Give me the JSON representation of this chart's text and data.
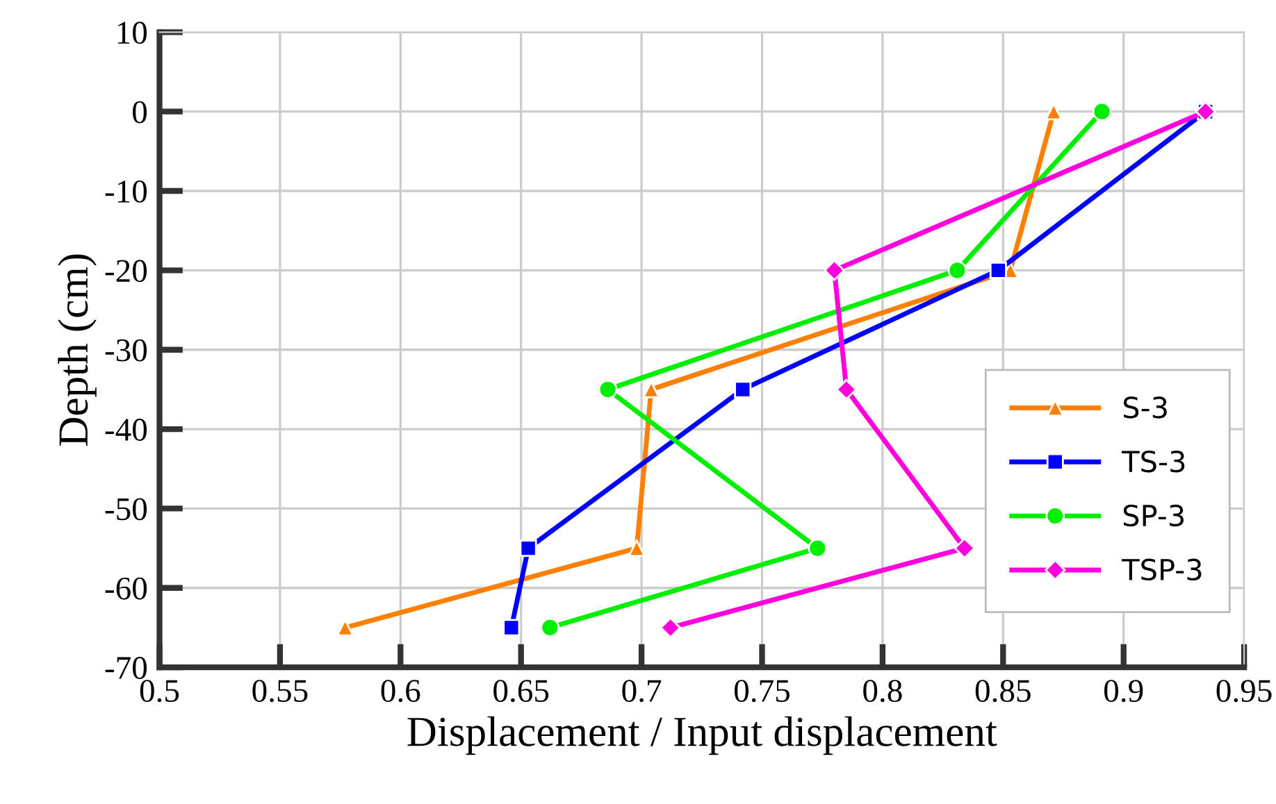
{
  "chart_data": {
    "type": "line",
    "xlabel": "Displacement / Input displacement",
    "ylabel": "Depth (cm)",
    "xlim": [
      0.5,
      0.95
    ],
    "xticks": [
      0.5,
      0.55,
      0.6,
      0.65,
      0.7,
      0.75,
      0.8,
      0.85,
      0.9,
      0.95
    ],
    "ylim": [
      -70,
      10
    ],
    "yticks": [
      -70,
      -60,
      -50,
      -40,
      -30,
      -20,
      -10,
      0,
      10
    ],
    "grid": true,
    "legend": "right",
    "series": [
      {
        "name": "S-3",
        "color": "#ff7f00",
        "marker": "triangle",
        "x": [
          0.871,
          0.853,
          0.704,
          0.698,
          0.577
        ],
        "values": [
          0,
          -20,
          -35,
          -55,
          -65
        ]
      },
      {
        "name": "TS-3",
        "color": "#0000ff",
        "marker": "square",
        "x": [
          0.934,
          0.848,
          0.742,
          0.653,
          0.646
        ],
        "values": [
          0,
          -20,
          -35,
          -55,
          -65
        ]
      },
      {
        "name": "SP-3",
        "color": "#00ee00",
        "marker": "circle",
        "x": [
          0.891,
          0.831,
          0.686,
          0.773,
          0.662
        ],
        "values": [
          0,
          -20,
          -35,
          -55,
          -65
        ]
      },
      {
        "name": "TSP-3",
        "color": "#ff00dd",
        "marker": "diamond",
        "x": [
          0.934,
          0.78,
          0.785,
          0.834,
          0.712
        ],
        "values": [
          0,
          -20,
          -35,
          -55,
          -65
        ]
      }
    ]
  }
}
